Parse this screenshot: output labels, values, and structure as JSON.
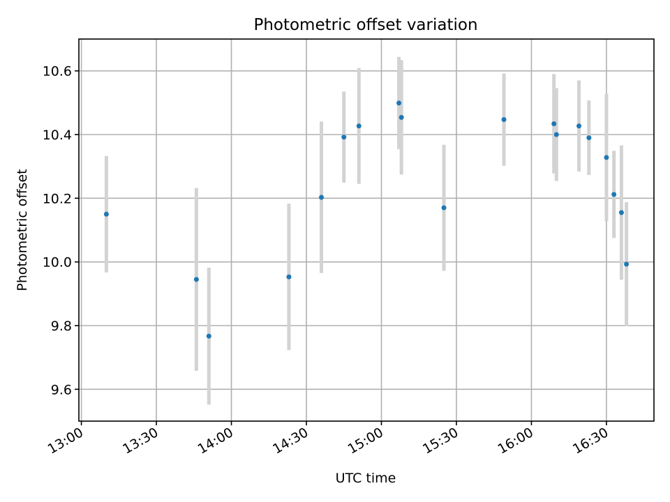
{
  "chart_data": {
    "type": "scatter",
    "title": "Photometric offset variation",
    "xlabel": "UTC time",
    "ylabel": "Photometric offset",
    "x_axis_kind": "time",
    "xlim": [
      "12:59",
      "16:49"
    ],
    "ylim": [
      9.5,
      10.7
    ],
    "x_ticks": [
      "13:00",
      "13:30",
      "14:00",
      "14:30",
      "15:00",
      "15:30",
      "16:00",
      "16:30"
    ],
    "y_ticks": [
      9.6,
      9.8,
      10.0,
      10.2,
      10.4,
      10.6
    ],
    "y_tick_labels": [
      "9.6",
      "9.8",
      "10.0",
      "10.2",
      "10.4",
      "10.6"
    ],
    "grid": true,
    "marker_color": "#1f77b4",
    "errorbar_color": "#d3d3d3",
    "points": [
      {
        "t": "13:10",
        "y": 10.15,
        "err": 0.183
      },
      {
        "t": "13:46",
        "y": 9.945,
        "err": 0.287
      },
      {
        "t": "13:51",
        "y": 9.767,
        "err": 0.215
      },
      {
        "t": "14:23",
        "y": 9.953,
        "err": 0.23
      },
      {
        "t": "14:36",
        "y": 10.203,
        "err": 0.238
      },
      {
        "t": "14:45",
        "y": 10.392,
        "err": 0.143
      },
      {
        "t": "14:51",
        "y": 10.427,
        "err": 0.182
      },
      {
        "t": "15:07",
        "y": 10.499,
        "err": 0.145
      },
      {
        "t": "15:08",
        "y": 10.454,
        "err": 0.18
      },
      {
        "t": "15:25",
        "y": 10.17,
        "err": 0.198
      },
      {
        "t": "15:49",
        "y": 10.447,
        "err": 0.145
      },
      {
        "t": "16:09",
        "y": 10.434,
        "err": 0.156
      },
      {
        "t": "16:10",
        "y": 10.4,
        "err": 0.146
      },
      {
        "t": "16:19",
        "y": 10.427,
        "err": 0.143
      },
      {
        "t": "16:23",
        "y": 10.39,
        "err": 0.117
      },
      {
        "t": "16:30",
        "y": 10.328,
        "err": 0.2
      },
      {
        "t": "16:33",
        "y": 10.212,
        "err": 0.137
      },
      {
        "t": "16:36",
        "y": 10.155,
        "err": 0.211
      },
      {
        "t": "16:38",
        "y": 9.993,
        "err": 0.195
      }
    ]
  }
}
